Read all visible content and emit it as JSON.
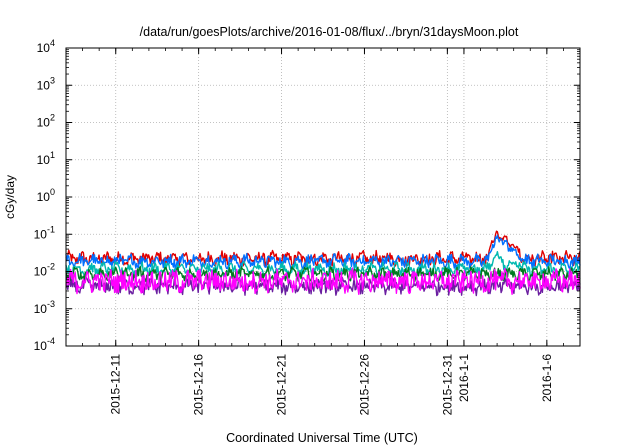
{
  "chart_data": {
    "type": "line",
    "title": "/data/run/goesPlots/archive/2016-01-08/flux/../bryn/31daysMoon.plot",
    "xlabel": "Coordinated Universal Time (UTC)",
    "ylabel": "cGy/day",
    "yscale": "log",
    "ylim": [
      0.0001,
      10000
    ],
    "y_ticks": [
      {
        "value": 0.0001,
        "base": "10",
        "exp": "-4"
      },
      {
        "value": 0.001,
        "base": "10",
        "exp": "-3"
      },
      {
        "value": 0.01,
        "base": "10",
        "exp": "-2"
      },
      {
        "value": 0.1,
        "base": "10",
        "exp": "-1"
      },
      {
        "value": 1,
        "base": "10",
        "exp": "0"
      },
      {
        "value": 10,
        "base": "10",
        "exp": "1"
      },
      {
        "value": 100,
        "base": "10",
        "exp": "2"
      },
      {
        "value": 1000,
        "base": "10",
        "exp": "3"
      },
      {
        "value": 10000,
        "base": "10",
        "exp": "4"
      }
    ],
    "xlim": [
      "2015-12-08",
      "2016-01-08"
    ],
    "x_ticks": [
      "2015-12-11",
      "2015-12-16",
      "2015-12-21",
      "2015-12-26",
      "2015-12-31",
      "2016-1-1",
      "2016-1-6"
    ],
    "x_tick_dates": [
      "2015-12-11",
      "2015-12-16",
      "2015-12-21",
      "2015-12-26",
      "2015-12-31",
      "2016-01-01",
      "2016-01-06"
    ],
    "grid": true,
    "legend": "none",
    "series": [
      {
        "color": "#e00000",
        "baseline": 0.022,
        "spread": 0.3,
        "points": [
          {
            "x": "2016-01-03",
            "y": 0.12
          },
          {
            "x": "2016-01-03T12:00",
            "y": 0.09
          },
          {
            "x": "2016-01-04",
            "y": 0.05
          }
        ]
      },
      {
        "color": "#0070ff",
        "baseline": 0.019,
        "spread": 0.28,
        "points": [
          {
            "x": "2016-01-03",
            "y": 0.09
          },
          {
            "x": "2016-01-03T12:00",
            "y": 0.07
          },
          {
            "x": "2016-01-04",
            "y": 0.04
          }
        ]
      },
      {
        "color": "#00b8b0",
        "baseline": 0.0115,
        "spread": 0.25,
        "points": [
          {
            "x": "2016-01-03",
            "y": 0.03
          },
          {
            "x": "2016-01-04",
            "y": 0.02
          }
        ]
      },
      {
        "color": "#007a20",
        "baseline": 0.0085,
        "spread": 0.25,
        "points": []
      },
      {
        "color": "#6a1ea0",
        "baseline": 0.004,
        "spread": 0.35,
        "points": []
      },
      {
        "color": "#ff00ff",
        "baseline": 0.0055,
        "spread": 0.55,
        "points": []
      }
    ]
  }
}
